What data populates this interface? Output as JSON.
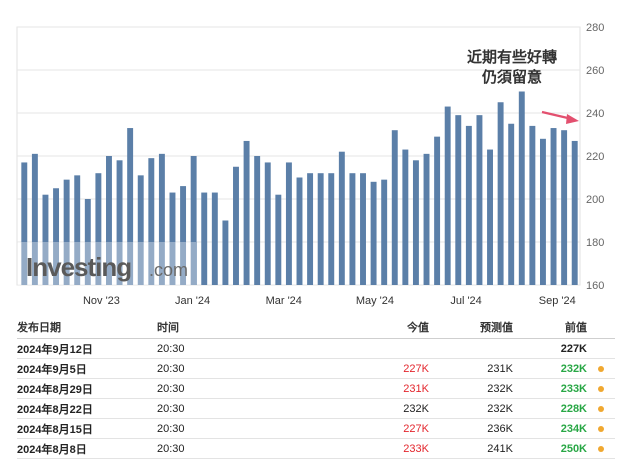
{
  "chart_data": {
    "type": "bar",
    "y_axis": {
      "min": 160,
      "max": 280,
      "ticks": [
        280,
        260,
        240,
        220,
        200,
        180,
        160
      ],
      "position": "right"
    },
    "x_tick_labels": [
      "Nov '23",
      "Jan '24",
      "Mar '24",
      "May '24",
      "Jul '24",
      "Sep '24"
    ],
    "x_tick_bar_index": [
      11,
      24,
      37,
      50,
      63,
      76
    ],
    "values": [
      217,
      221,
      202,
      205,
      209,
      211,
      200,
      212,
      220,
      218,
      233,
      211,
      219,
      221,
      203,
      206,
      220,
      203,
      203,
      190,
      215,
      227,
      220,
      217,
      202,
      217,
      210,
      212,
      212,
      212,
      222,
      212,
      212,
      208,
      209,
      232,
      223,
      218,
      221,
      229,
      243,
      239,
      234,
      239,
      223,
      245,
      235,
      250,
      234,
      228,
      233,
      232,
      227
    ],
    "bar_color": "#5b7fa8",
    "grid": true
  },
  "annotation": {
    "line1": "近期有些好轉",
    "line2": "仍須留意",
    "arrow_color": "#e3506f"
  },
  "watermark": {
    "brand": "Investing",
    "suffix": ".com"
  },
  "table": {
    "headers": {
      "date": "发布日期",
      "time": "时间",
      "actual": "今值",
      "forecast": "预测值",
      "previous": "前值"
    },
    "rows": [
      {
        "date": "2024年9月12日",
        "time": "20:30",
        "actual": "",
        "actual_color": "",
        "forecast": "",
        "previous": "227K",
        "previous_color": "#222222",
        "dot": false
      },
      {
        "date": "2024年9月5日",
        "time": "20:30",
        "actual": "227K",
        "actual_color": "#e3262d",
        "forecast": "231K",
        "previous": "232K",
        "previous_color": "#28a745",
        "dot": true
      },
      {
        "date": "2024年8月29日",
        "time": "20:30",
        "actual": "231K",
        "actual_color": "#e3262d",
        "forecast": "232K",
        "previous": "233K",
        "previous_color": "#28a745",
        "dot": true
      },
      {
        "date": "2024年8月22日",
        "time": "20:30",
        "actual": "232K",
        "actual_color": "#222222",
        "forecast": "232K",
        "previous": "228K",
        "previous_color": "#28a745",
        "dot": true
      },
      {
        "date": "2024年8月15日",
        "time": "20:30",
        "actual": "227K",
        "actual_color": "#e3262d",
        "forecast": "236K",
        "previous": "234K",
        "previous_color": "#28a745",
        "dot": true
      },
      {
        "date": "2024年8月8日",
        "time": "20:30",
        "actual": "233K",
        "actual_color": "#e3262d",
        "forecast": "241K",
        "previous": "250K",
        "previous_color": "#28a745",
        "dot": true
      }
    ]
  }
}
